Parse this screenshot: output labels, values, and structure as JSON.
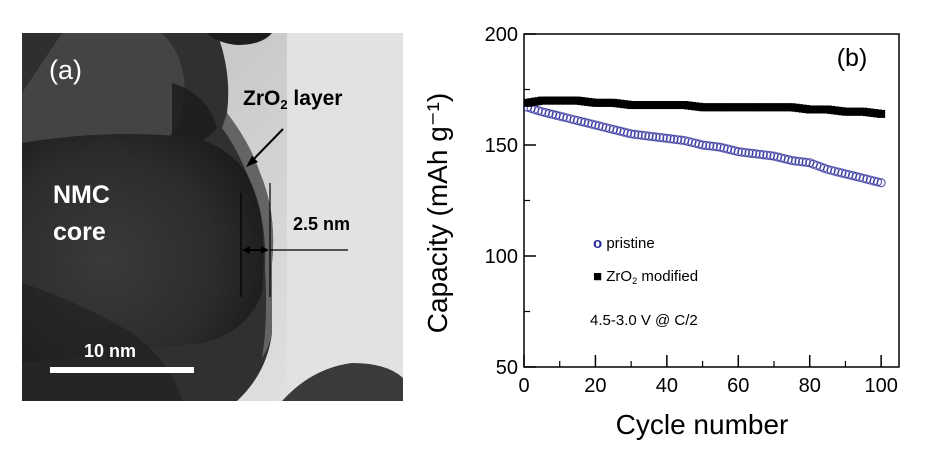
{
  "panel_a": {
    "label": "(a)",
    "core_label_line1": "NMC",
    "core_label_line2": "core",
    "layer_label_main": "ZrO",
    "layer_label_sub": "2",
    "layer_label_rest": " layer",
    "thickness_label": "2.5 nm",
    "scale_bar_label": "10 nm"
  },
  "chart_data": {
    "type": "scatter",
    "panel_label": "(b)",
    "xlabel": "Cycle number",
    "ylabel": "Capacity (mAh g⁻¹)",
    "xlim": [
      0,
      105
    ],
    "ylim": [
      50,
      200
    ],
    "xticks": [
      0,
      20,
      40,
      60,
      80,
      100
    ],
    "yticks": [
      50,
      100,
      150,
      200
    ],
    "x": [
      1,
      5,
      10,
      15,
      20,
      25,
      30,
      35,
      40,
      45,
      50,
      55,
      60,
      65,
      70,
      75,
      80,
      85,
      90,
      95,
      100
    ],
    "series": [
      {
        "name": "pristine",
        "legend_marker": "o",
        "marker": "open-circle",
        "color": "#2a2a9a",
        "values": [
          167,
          165,
          163,
          161,
          159,
          157,
          155,
          154,
          153,
          152,
          150,
          149,
          147,
          146,
          145,
          143,
          142,
          139,
          137,
          135,
          133
        ]
      },
      {
        "name_main": "ZrO",
        "name_sub": "2",
        "name_rest": " modified",
        "legend_marker": "■",
        "marker": "filled-square",
        "color": "#000000",
        "values": [
          169,
          170,
          170,
          170,
          169,
          169,
          168,
          168,
          168,
          168,
          167,
          167,
          167,
          167,
          167,
          167,
          166,
          166,
          165,
          165,
          164
        ]
      }
    ],
    "annotation": "4.5-3.0 V @ C/2"
  }
}
